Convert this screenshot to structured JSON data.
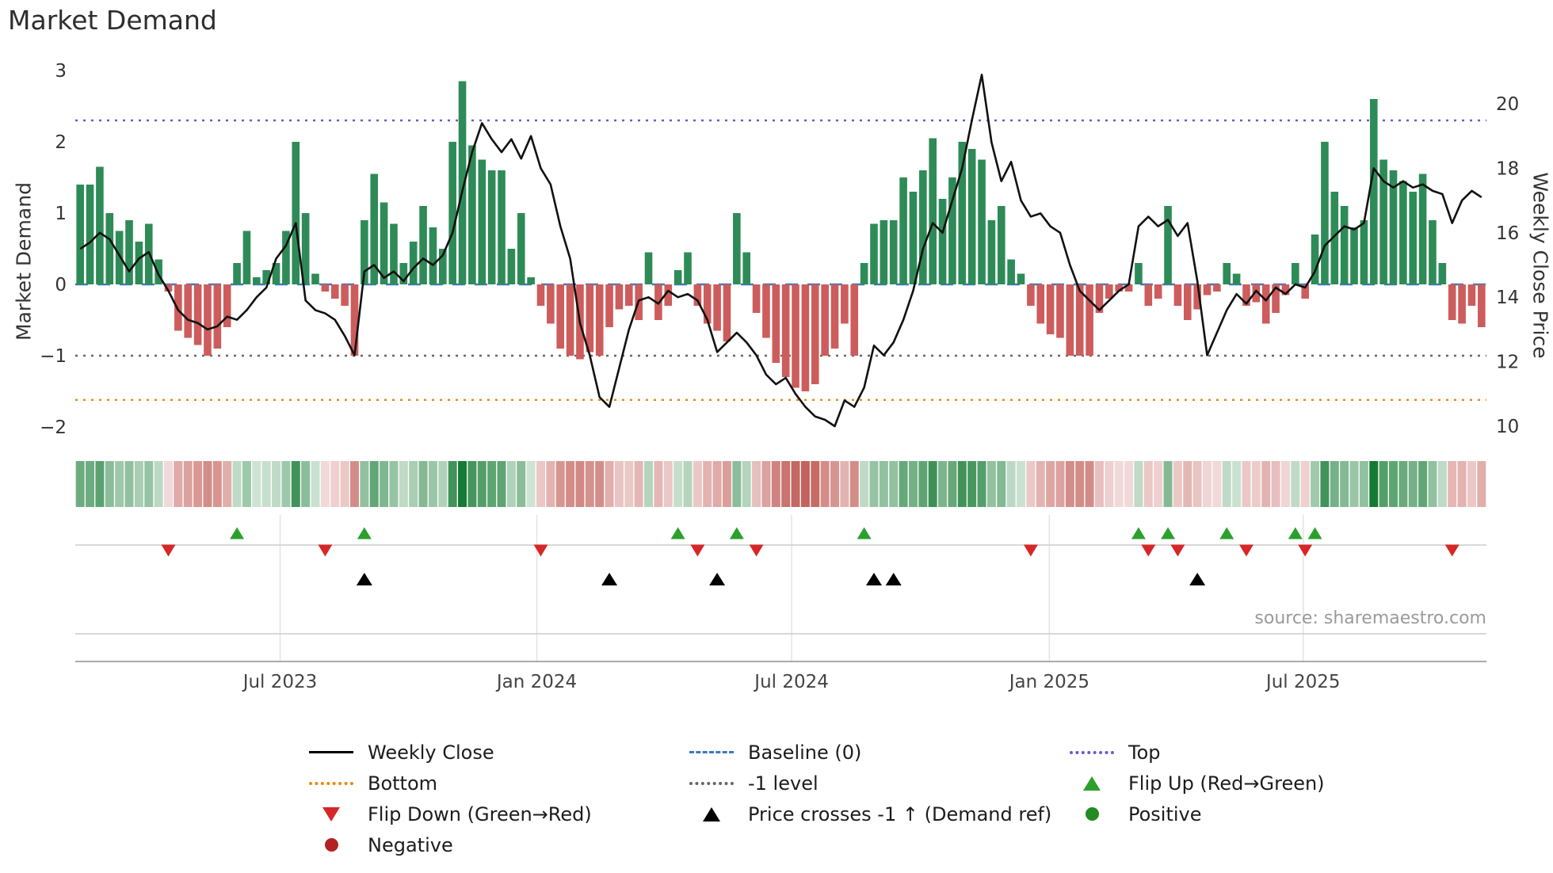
{
  "title": "Market Demand",
  "source_text": "source: sharemaestro.com",
  "axes": {
    "left_label": "Market Demand",
    "right_label": "Weekly Close Price",
    "left_ticks": [
      {
        "label": "3",
        "value": 3
      },
      {
        "label": "2",
        "value": 2
      },
      {
        "label": "1",
        "value": 1
      },
      {
        "label": "0",
        "value": 0
      },
      {
        "label": "−1",
        "value": -1
      },
      {
        "label": "−2",
        "value": -2
      }
    ],
    "right_ticks": [
      {
        "label": "20",
        "value": 20
      },
      {
        "label": "18",
        "value": 18
      },
      {
        "label": "16",
        "value": 16
      },
      {
        "label": "14",
        "value": 14
      },
      {
        "label": "12",
        "value": 12
      },
      {
        "label": "10",
        "value": 10
      }
    ]
  },
  "colors": {
    "bar_positive": "#2e8b57",
    "bar_negative": "#cd5c5c",
    "price_line": "#111111",
    "flip_up": "#2ca02c",
    "flip_down": "#d62728",
    "price_cross": "#000000",
    "positive_dot": "#228b22",
    "negative_dot": "#b22222",
    "heat_green": "#157a33",
    "heat_red": "#c05a55",
    "baseline": "#3a7abf",
    "top_line": "#6a5acd",
    "bottom_line": "#e8890c",
    "minus_one_line": "#666666"
  },
  "chart_data": {
    "type": "bar+line",
    "title": "Market Demand",
    "x_start": "2023-02-05",
    "x_freq_days": 7,
    "left_axis_range": [
      -2.3,
      3.1
    ],
    "right_axis_range": [
      9.8,
      21.1
    ],
    "grid": false,
    "x_ticks": [
      {
        "label": "Jul 2023",
        "week": 20.9
      },
      {
        "label": "Jan 2024",
        "week": 47.1
      },
      {
        "label": "Jul 2024",
        "week": 73.1
      },
      {
        "label": "Jan 2025",
        "week": 99.4
      },
      {
        "label": "Jul 2025",
        "week": 125.3
      }
    ],
    "reference_lines": [
      {
        "name": "Top",
        "value": 2.3,
        "color": "#6a5acd",
        "dash": "dotted"
      },
      {
        "name": "Baseline (0)",
        "value": 0,
        "color": "#3a7abf",
        "dash": "dashed"
      },
      {
        "name": "-1 level",
        "value": -1,
        "color": "#666666",
        "dash": "dotted"
      },
      {
        "name": "Bottom",
        "value": -1.62,
        "color": "#e8890c",
        "dash": "dotted"
      }
    ],
    "series": [
      {
        "name": "Market Demand",
        "type": "bar",
        "axis": "left",
        "values": [
          1.4,
          1.4,
          1.65,
          1.0,
          0.75,
          0.9,
          0.6,
          0.85,
          0.35,
          -0.1,
          -0.65,
          -0.75,
          -0.85,
          -1.0,
          -0.9,
          -0.6,
          0.3,
          0.75,
          0.1,
          0.2,
          0.3,
          0.75,
          2.0,
          1.0,
          0.15,
          -0.1,
          -0.2,
          -0.3,
          -1.0,
          0.9,
          1.55,
          1.15,
          0.85,
          0.3,
          0.6,
          1.1,
          0.8,
          0.5,
          2.0,
          2.85,
          1.95,
          1.75,
          1.6,
          1.6,
          0.5,
          1.0,
          0.1,
          -0.3,
          -0.55,
          -0.9,
          -1.0,
          -1.05,
          -0.95,
          -1.0,
          -0.6,
          -0.35,
          -0.3,
          -0.5,
          0.45,
          -0.5,
          -0.3,
          0.2,
          0.45,
          -0.3,
          -0.55,
          -0.65,
          -0.8,
          1.0,
          0.45,
          -0.4,
          -0.75,
          -1.1,
          -1.3,
          -1.45,
          -1.5,
          -1.4,
          -1.0,
          -0.9,
          -0.55,
          -1.0,
          0.3,
          0.85,
          0.9,
          0.9,
          1.5,
          1.3,
          1.6,
          2.05,
          1.2,
          1.5,
          2.0,
          1.9,
          1.75,
          0.9,
          1.1,
          0.35,
          0.15,
          -0.3,
          -0.55,
          -0.7,
          -0.75,
          -1.0,
          -1.0,
          -1.0,
          -0.4,
          -0.2,
          -0.1,
          -0.1,
          0.3,
          -0.3,
          -0.2,
          1.1,
          -0.3,
          -0.5,
          -0.35,
          -0.15,
          -0.1,
          0.3,
          0.15,
          -0.3,
          -0.25,
          -0.55,
          -0.4,
          -0.15,
          0.3,
          -0.2,
          0.7,
          2.0,
          1.3,
          1.1,
          0.8,
          0.9,
          2.6,
          1.75,
          1.6,
          1.45,
          1.3,
          1.55,
          0.9,
          0.3,
          -0.5,
          -0.55,
          -0.3,
          -0.6
        ]
      },
      {
        "name": "Weekly Close",
        "type": "line",
        "axis": "right",
        "values": [
          15.5,
          15.7,
          16.0,
          15.8,
          15.3,
          14.8,
          15.2,
          15.4,
          14.7,
          14.2,
          13.6,
          13.3,
          13.2,
          13.0,
          13.1,
          13.4,
          13.3,
          13.6,
          14.0,
          14.3,
          15.2,
          15.6,
          16.3,
          13.9,
          13.6,
          13.5,
          13.3,
          12.8,
          12.2,
          14.8,
          15.0,
          14.6,
          14.8,
          14.5,
          14.9,
          15.2,
          15.0,
          15.3,
          16.0,
          17.3,
          18.5,
          19.4,
          18.9,
          18.5,
          18.9,
          18.3,
          19.0,
          18.0,
          17.5,
          16.2,
          15.2,
          13.2,
          12.2,
          10.9,
          10.6,
          11.8,
          13.0,
          13.9,
          14.0,
          13.8,
          14.2,
          14.0,
          14.1,
          13.9,
          13.3,
          12.3,
          12.6,
          12.9,
          12.6,
          12.2,
          11.6,
          11.3,
          11.5,
          11.0,
          10.6,
          10.3,
          10.2,
          10.0,
          10.8,
          10.6,
          11.2,
          12.5,
          12.2,
          12.6,
          13.3,
          14.2,
          15.5,
          16.3,
          16.0,
          17.0,
          18.0,
          19.5,
          20.9,
          18.8,
          17.6,
          18.2,
          17.0,
          16.5,
          16.6,
          16.2,
          16.0,
          15.0,
          14.2,
          13.9,
          13.6,
          13.9,
          14.2,
          14.4,
          16.2,
          16.5,
          16.2,
          16.4,
          15.9,
          16.3,
          14.5,
          12.2,
          12.9,
          13.6,
          14.1,
          13.8,
          14.2,
          13.9,
          14.3,
          14.1,
          14.4,
          14.3,
          14.8,
          15.6,
          15.9,
          16.2,
          16.1,
          16.3,
          18.0,
          17.6,
          17.4,
          17.6,
          17.4,
          17.5,
          17.3,
          17.2,
          16.3,
          17.0,
          17.3,
          17.1
        ]
      }
    ],
    "heatmap_strip": {
      "derived_from": "Market Demand bars",
      "positive_color": "#157a33",
      "negative_color": "#c05a55",
      "mid_color": "#ffffff"
    },
    "markers": {
      "flip_up_weeks": [
        16,
        29,
        61,
        67,
        80,
        108,
        111,
        117,
        124,
        126
      ],
      "flip_down_weeks": [
        9,
        25,
        47,
        63,
        69,
        97,
        109,
        112,
        119,
        125,
        140
      ],
      "price_cross_minus1_weeks": [
        29,
        54,
        65,
        81,
        83,
        114
      ]
    }
  },
  "legend": [
    {
      "label": "Weekly Close",
      "swatch": "line-solid",
      "color": "#000000"
    },
    {
      "label": "Baseline (0)",
      "swatch": "line-dashed",
      "color": "#3a7abf"
    },
    {
      "label": "Top",
      "swatch": "line-dotted",
      "color": "#6a5acd"
    },
    {
      "label": "Bottom",
      "swatch": "line-dotted",
      "color": "#e8890c"
    },
    {
      "label": "-1 level",
      "swatch": "line-dotted",
      "color": "#666666"
    },
    {
      "label": "Flip Up (Red→Green)",
      "swatch": "triangle-up",
      "color": "#2ca02c"
    },
    {
      "label": "Flip Down (Green→Red)",
      "swatch": "triangle-down",
      "color": "#d62728"
    },
    {
      "label": "Price crosses -1 ↑ (Demand ref)",
      "swatch": "triangle-up",
      "color": "#000000"
    },
    {
      "label": "Positive",
      "swatch": "circle",
      "color": "#228b22"
    },
    {
      "label": "Negative",
      "swatch": "circle",
      "color": "#b22222"
    }
  ]
}
